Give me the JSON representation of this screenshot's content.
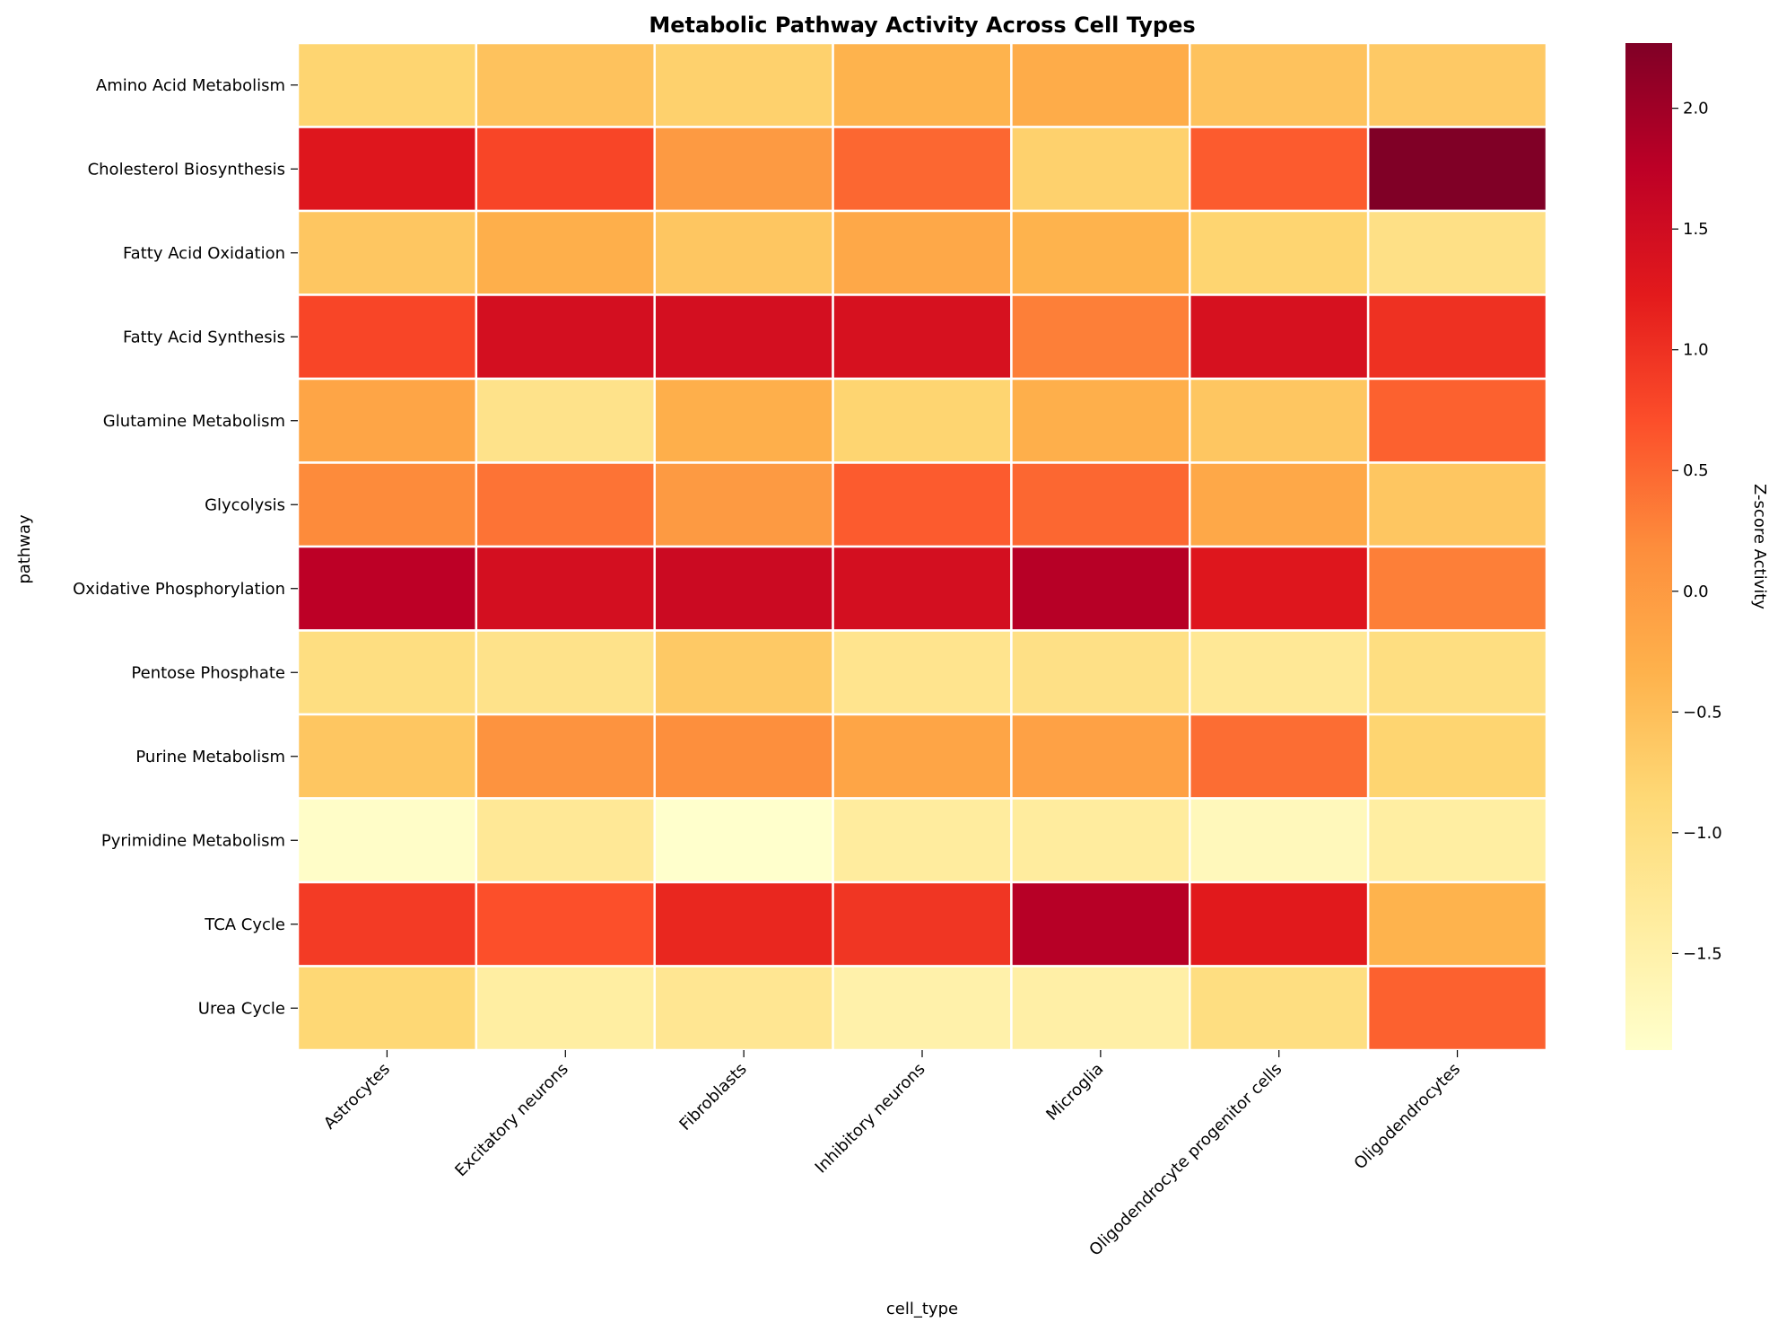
{
  "chart_data": {
    "type": "heatmap",
    "title": "Metabolic Pathway Activity Across Cell Types",
    "xlabel": "cell_type",
    "ylabel": "pathway",
    "colorbar_label": "Z-score Activity",
    "colormap": "YlOrRd",
    "vmin": -1.9,
    "vmax": 2.27,
    "colorbar_ticks": [
      "2.0",
      "1.5",
      "1.0",
      "0.5",
      "0.0",
      "−0.5",
      "−1.0",
      "−1.5"
    ],
    "colorbar_tick_values": [
      2.0,
      1.5,
      1.0,
      0.5,
      0.0,
      -0.5,
      -1.0,
      -1.5
    ],
    "x_categories": [
      "Astrocytes",
      "Excitatory neurons",
      "Fibroblasts",
      "Inhibitory neurons",
      "Microglia",
      "Oligodendrocyte progenitor cells",
      "Oligodendrocytes"
    ],
    "y_categories": [
      "Amino Acid Metabolism",
      "Cholesterol Biosynthesis",
      "Fatty Acid Oxidation",
      "Fatty Acid Synthesis",
      "Glutamine Metabolism",
      "Glycolysis",
      "Oxidative Phosphorylation",
      "Pentose Phosphate",
      "Purine Metabolism",
      "Pyrimidine Metabolism",
      "TCA Cycle",
      "Urea Cycle"
    ],
    "values": [
      [
        -0.8,
        -0.55,
        -0.75,
        -0.35,
        -0.25,
        -0.55,
        -0.65
      ],
      [
        1.3,
        0.8,
        0.0,
        0.5,
        -0.75,
        0.6,
        2.27
      ],
      [
        -0.6,
        -0.3,
        -0.6,
        -0.2,
        -0.35,
        -0.8,
        -1.05
      ],
      [
        0.8,
        1.45,
        1.45,
        1.4,
        0.3,
        1.4,
        1.0
      ],
      [
        -0.15,
        -1.1,
        -0.3,
        -0.8,
        -0.3,
        -0.6,
        0.55
      ],
      [
        0.2,
        0.4,
        0.0,
        0.6,
        0.5,
        -0.2,
        -0.6
      ],
      [
        1.75,
        1.45,
        1.55,
        1.45,
        1.8,
        1.3,
        0.3
      ],
      [
        -1.0,
        -1.1,
        -0.65,
        -1.15,
        -1.05,
        -1.25,
        -1.0
      ],
      [
        -0.6,
        0.1,
        0.15,
        -0.15,
        -0.1,
        0.45,
        -0.8
      ],
      [
        -1.85,
        -1.25,
        -1.9,
        -1.35,
        -1.35,
        -1.7,
        -1.4
      ],
      [
        0.9,
        0.7,
        1.1,
        0.95,
        1.8,
        1.25,
        -0.35
      ],
      [
        -0.85,
        -1.4,
        -1.2,
        -1.5,
        -1.45,
        -1.0,
        0.55
      ]
    ]
  }
}
